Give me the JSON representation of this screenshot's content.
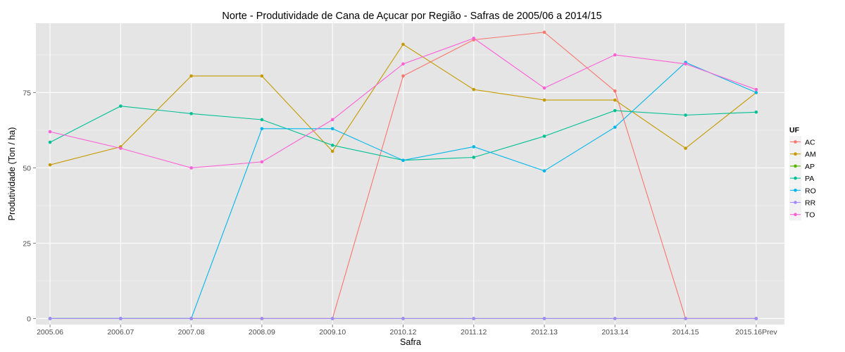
{
  "chart_data": {
    "type": "line",
    "title": "Norte  - Produtividade de Cana de Açucar por Região - Safras de 2005/06 a 2014/15",
    "xlabel": "Safra",
    "ylabel": "Produtividade (Ton / ha)",
    "categories": [
      "2005.06",
      "2006.07",
      "2007.08",
      "2008.09",
      "2009.10",
      "2010.12",
      "2011.12",
      "2012.13",
      "2013.14",
      "2014.15",
      "2015.16Prev"
    ],
    "ylim": [
      -2,
      98
    ],
    "yticks": [
      0,
      25,
      50,
      75
    ],
    "grid": true,
    "legend": {
      "title": "UF",
      "position": "right"
    },
    "series": [
      {
        "name": "AC",
        "color": "#F8766D",
        "values": [
          0,
          0,
          0,
          0,
          0,
          80.5,
          92.5,
          95,
          75.5,
          0,
          0
        ]
      },
      {
        "name": "AM",
        "color": "#C49A00",
        "values": [
          51,
          57,
          80.5,
          80.5,
          55.5,
          91,
          76,
          72.5,
          72.5,
          56.5,
          75
        ]
      },
      {
        "name": "AP",
        "color": "#53B400",
        "values": [
          0,
          0,
          0,
          0,
          0,
          0,
          0,
          0,
          0,
          0,
          0
        ]
      },
      {
        "name": "PA",
        "color": "#00C094",
        "values": [
          58.5,
          70.5,
          68,
          66,
          57.5,
          52.5,
          53.5,
          60.5,
          69,
          67.5,
          68.5
        ]
      },
      {
        "name": "RO",
        "color": "#00B6EB",
        "values": [
          0,
          0,
          0,
          63,
          63,
          52.5,
          57,
          49,
          63.5,
          85,
          75
        ]
      },
      {
        "name": "RR",
        "color": "#A58AFF",
        "values": [
          0,
          0,
          0,
          0,
          0,
          0,
          0,
          0,
          0,
          0,
          0
        ]
      },
      {
        "name": "TO",
        "color": "#FB61D7",
        "values": [
          62,
          56.5,
          50,
          52,
          66,
          84.5,
          93,
          76.5,
          87.5,
          84.5,
          76
        ]
      }
    ]
  }
}
